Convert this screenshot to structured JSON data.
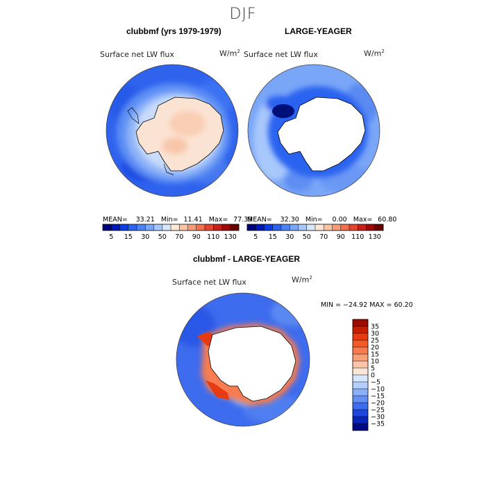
{
  "season": "DJF",
  "chart_data": [
    {
      "type": "heatmap",
      "projection": "south-polar-stereographic",
      "panel": "top-left",
      "title": "clubbmf (yrs 1979-1979)",
      "variable_label": "Surface net LW flux",
      "units": "W/m",
      "units_exponent": "2",
      "stats": {
        "mean_label": "MEAN=",
        "mean": "33.21",
        "min_label": "Min=",
        "min": "11.41",
        "max_label": "Max=",
        "max": "77.39"
      },
      "colorbar_ticks": [
        "5",
        "15",
        "30",
        "50",
        "70",
        "90",
        "110",
        "130"
      ],
      "colorbar_colors": [
        "#00007a",
        "#0018b4",
        "#0a3ee6",
        "#2c64f0",
        "#4d82f4",
        "#7aa6f8",
        "#a8c8fb",
        "#d6e6fd",
        "#fde8d8",
        "#fbc4a4",
        "#f79c78",
        "#f07050",
        "#e2462e",
        "#c8201a",
        "#9c0a0a",
        "#6a0000"
      ]
    },
    {
      "type": "heatmap",
      "projection": "south-polar-stereographic",
      "panel": "top-right",
      "title": "LARGE-YEAGER",
      "variable_label": "Surface net LW flux",
      "units": "W/m",
      "units_exponent": "2",
      "stats": {
        "mean_label": "MEAN=",
        "mean": "32.30",
        "min_label": "Min=",
        "min": "0.00",
        "max_label": "Max=",
        "max": "60.80"
      },
      "colorbar_ticks": [
        "5",
        "15",
        "30",
        "50",
        "70",
        "90",
        "110",
        "130"
      ],
      "colorbar_colors": [
        "#00007a",
        "#0018b4",
        "#0a3ee6",
        "#2c64f0",
        "#4d82f4",
        "#7aa6f8",
        "#a8c8fb",
        "#d6e6fd",
        "#fde8d8",
        "#fbc4a4",
        "#f79c78",
        "#f07050",
        "#e2462e",
        "#c8201a",
        "#9c0a0a",
        "#6a0000"
      ]
    },
    {
      "type": "heatmap",
      "projection": "south-polar-stereographic",
      "panel": "bottom",
      "title": "clubbmf - LARGE-YEAGER",
      "variable_label": "Surface net LW flux",
      "units": "W/m",
      "units_exponent": "2",
      "min_max_text": "MIN = −24.92 MAX =  60.20",
      "colorbar_ticks": [
        "35",
        "30",
        "25",
        "20",
        "15",
        "10",
        "5",
        "0",
        "−5",
        "−10",
        "−15",
        "−20",
        "−25",
        "−30",
        "−35"
      ],
      "colorbar_colors": [
        "#9a0a00",
        "#c81e00",
        "#e63b10",
        "#f45a28",
        "#f87c50",
        "#faa078",
        "#fcc4a8",
        "#fde6d6",
        "#d6e6fd",
        "#b4cffb",
        "#8ab0f7",
        "#6490f3",
        "#3e6cee",
        "#1c46de",
        "#0a26b8",
        "#000a82"
      ]
    }
  ]
}
